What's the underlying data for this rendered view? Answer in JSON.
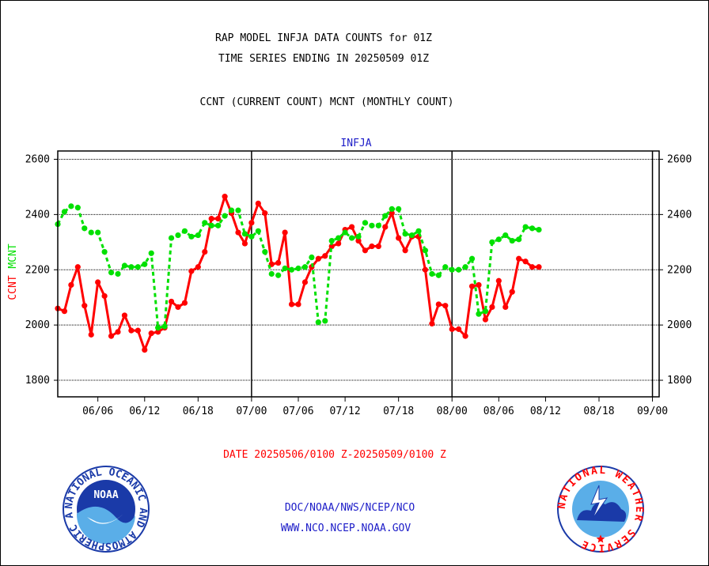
{
  "header": {
    "line1": "RAP MODEL INFJA DATA COUNTS for 01Z",
    "line2": "TIME SERIES ENDING IN 20250509 01Z",
    "line3": "CCNT (CURRENT COUNT) MCNT (MONTHLY COUNT)"
  },
  "footer": {
    "date_range": "DATE 20250506/0100 Z-20250509/0100 Z",
    "org": "DOC/NOAA/NWS/NCEP/NCO",
    "url": "WWW.NCO.NCEP.NOAA.GOV"
  },
  "logos": {
    "noaa": "NOAA",
    "noaa_ring": "NATIONAL OCEANIC AND ATMOSPHERIC ADMINISTRATION · U.S. DEPARTMENT OF COMMERCE ·",
    "nws_ring": "NATIONAL WEATHER SERVICE"
  },
  "colors": {
    "ccnt": "#ff0000",
    "mcnt": "#00e000",
    "text": "#000000",
    "blue": "#1c1cc8"
  },
  "chart_data": {
    "type": "line",
    "title": "INFJA",
    "ylabel_parts": [
      "CCNT",
      "MCNT"
    ],
    "ylim": [
      1740,
      2630
    ],
    "yticks": [
      1800,
      2000,
      2200,
      2400,
      2600
    ],
    "grid": true,
    "x_index_range": [
      0,
      90
    ],
    "xticks": [
      {
        "i": 6,
        "label": "06/06"
      },
      {
        "i": 13,
        "label": "06/12"
      },
      {
        "i": 21,
        "label": "06/18"
      },
      {
        "i": 29,
        "label": "07/00"
      },
      {
        "i": 36,
        "label": "07/06"
      },
      {
        "i": 43,
        "label": "07/12"
      },
      {
        "i": 51,
        "label": "07/18"
      },
      {
        "i": 59,
        "label": "08/00"
      },
      {
        "i": 66,
        "label": "08/06"
      },
      {
        "i": 73,
        "label": "08/12"
      },
      {
        "i": 81,
        "label": "08/18"
      },
      {
        "i": 89,
        "label": "09/00"
      }
    ],
    "day_separators": [
      29,
      59,
      89
    ],
    "series": [
      {
        "name": "CCNT",
        "color": "#ff0000",
        "values": [
          2060,
          2050,
          2145,
          2210,
          2070,
          1965,
          2155,
          2105,
          1960,
          1975,
          2035,
          1980,
          1980,
          1910,
          1970,
          1975,
          1990,
          2085,
          2065,
          2080,
          2195,
          2210,
          2265,
          2385,
          2385,
          2465,
          2405,
          2335,
          2295,
          2370,
          2440,
          2405,
          2220,
          2225,
          2335,
          2075,
          2075,
          2155,
          2210,
          2240,
          2250,
          2285,
          2295,
          2345,
          2355,
          2305,
          2270,
          2285,
          2285,
          2355,
          2405,
          2315,
          2270,
          2320,
          2320,
          2200,
          2005,
          2075,
          2070,
          1985,
          1985,
          1960,
          2140,
          2145,
          2020,
          2065,
          2160,
          2065,
          2120,
          2240,
          2230,
          2210,
          2210
        ]
      },
      {
        "name": "MCNT",
        "color": "#00e000",
        "values": [
          2365,
          2410,
          2430,
          2425,
          2350,
          2335,
          2335,
          2265,
          2190,
          2185,
          2215,
          2210,
          2210,
          2220,
          2260,
          1990,
          1995,
          2315,
          2325,
          2340,
          2320,
          2325,
          2370,
          2360,
          2360,
          2395,
          2415,
          2415,
          2330,
          2320,
          2340,
          2265,
          2185,
          2180,
          2205,
          2200,
          2205,
          2210,
          2245,
          2010,
          2015,
          2305,
          2315,
          2335,
          2315,
          2320,
          2370,
          2360,
          2360,
          2395,
          2420,
          2420,
          2330,
          2325,
          2340,
          2270,
          2185,
          2180,
          2210,
          2200,
          2200,
          2210,
          2240,
          2040,
          2050,
          2300,
          2310,
          2325,
          2305,
          2310,
          2355,
          2350,
          2345
        ]
      }
    ]
  }
}
